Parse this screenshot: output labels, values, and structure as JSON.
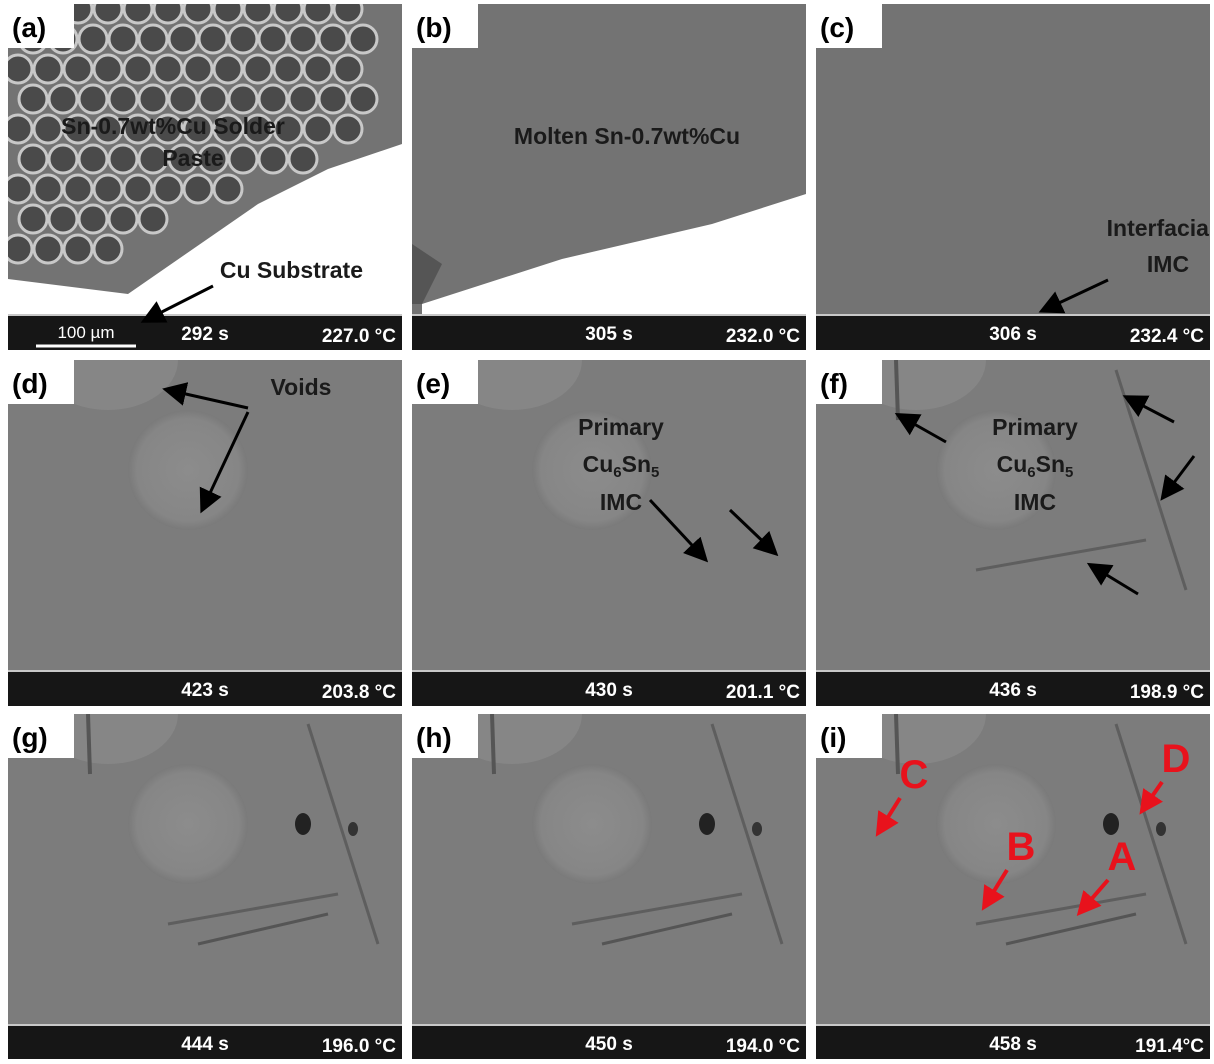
{
  "scale_bar": "100 µm",
  "panels": [
    {
      "label": "(a)",
      "time": "292 s",
      "temperature": "227.0 °C",
      "annotations": [
        "Sn-0.7wt%Cu Solder",
        "Paste",
        "Cu Substrate"
      ]
    },
    {
      "label": "(b)",
      "time": "305 s",
      "temperature": "232.0 °C",
      "annotations": [
        "Molten Sn-0.7wt%Cu"
      ]
    },
    {
      "label": "(c)",
      "time": "306 s",
      "temperature": "232.4 °C",
      "annotations": [
        "Interfacial",
        "IMC"
      ]
    },
    {
      "label": "(d)",
      "time": "423 s",
      "temperature": "203.8 °C",
      "annotations": [
        "Voids"
      ]
    },
    {
      "label": "(e)",
      "time": "430 s",
      "temperature": "201.1 °C",
      "annotations": [
        "Primary",
        "IMC"
      ],
      "formula": [
        "Cu",
        "6",
        "Sn",
        "5"
      ]
    },
    {
      "label": "(f)",
      "time": "436 s",
      "temperature": "198.9 °C",
      "annotations": [
        "Primary",
        "IMC"
      ],
      "formula": [
        "Cu",
        "6",
        "Sn",
        "5"
      ]
    },
    {
      "label": "(g)",
      "time": "444 s",
      "temperature": "196.0 °C"
    },
    {
      "label": "(h)",
      "time": "450 s",
      "temperature": "194.0 °C"
    },
    {
      "label": "(i)",
      "time": "458 s",
      "temperature": "191.4°C",
      "markers": [
        "C",
        "B",
        "A",
        "D"
      ]
    }
  ]
}
